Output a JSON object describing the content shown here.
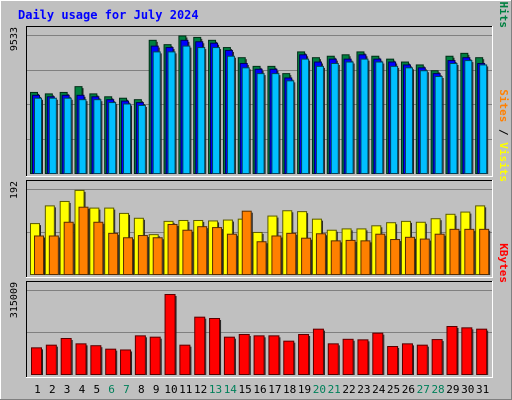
{
  "chart_data": {
    "type": "bar",
    "title": "Daily usage for July 2024",
    "categories": [
      "1",
      "2",
      "3",
      "4",
      "5",
      "6",
      "7",
      "8",
      "9",
      "10",
      "11",
      "12",
      "13",
      "14",
      "15",
      "16",
      "17",
      "18",
      "19",
      "20",
      "21",
      "22",
      "23",
      "24",
      "25",
      "26",
      "27",
      "28",
      "29",
      "30",
      "31"
    ],
    "weekend_days": [
      "6",
      "7",
      "13",
      "14",
      "20",
      "21",
      "27",
      "28"
    ],
    "panels": [
      {
        "name": "hits-files-pages",
        "max_label": "9533",
        "ymax": 9533,
        "legend": [
          {
            "text": "Pages",
            "color": "#00c0ff"
          },
          {
            "text": " / ",
            "color": "#000000"
          },
          {
            "text": "Files",
            "color": "#0000ff"
          },
          {
            "text": " / ",
            "color": "#000000"
          },
          {
            "text": "Hits",
            "color": "#008040"
          }
        ],
        "series": [
          {
            "name": "Hits",
            "color": "#008040",
            "values": [
              5600,
              5500,
              5600,
              6000,
              5500,
              5300,
              5200,
              5100,
              9200,
              8900,
              9500,
              9400,
              9200,
              8700,
              8000,
              7400,
              7400,
              6900,
              8400,
              8000,
              8100,
              8200,
              8400,
              8100,
              7900,
              7700,
              7500,
              7100,
              8100,
              8300,
              8000
            ]
          },
          {
            "name": "Files",
            "color": "#0000ff",
            "values": [
              5400,
              5300,
              5400,
              5400,
              5300,
              5100,
              5000,
              4900,
              8800,
              8700,
              9200,
              9100,
              9000,
              8500,
              7600,
              7200,
              7200,
              6600,
              8200,
              7700,
              7900,
              7900,
              8200,
              7900,
              7700,
              7500,
              7300,
              6900,
              7800,
              8000,
              7600
            ]
          },
          {
            "name": "Pages",
            "color": "#00c0ff",
            "values": [
              5200,
              5200,
              5200,
              5100,
              5100,
              4900,
              4800,
              4700,
              8400,
              8400,
              8800,
              8700,
              8700,
              8100,
              7300,
              6900,
              6900,
              6400,
              7900,
              7400,
              7600,
              7700,
              7900,
              7700,
              7400,
              7300,
              7100,
              6700,
              7600,
              7800,
              7500
            ]
          }
        ]
      },
      {
        "name": "visits-sites",
        "max_label": "192",
        "ymax": 192,
        "legend": [
          {
            "text": "Sites",
            "color": "#ff8000"
          },
          {
            "text": " / ",
            "color": "#000000"
          },
          {
            "text": "Visits",
            "color": "#ffff00"
          }
        ],
        "series": [
          {
            "name": "Visits",
            "color": "#ffff00",
            "values": [
              115,
              155,
              165,
              190,
              150,
              150,
              138,
              127,
              90,
              120,
              122,
              122,
              121,
              123,
              125,
              95,
              132,
              144,
              142,
              125,
              100,
              103,
              103,
              110,
              117,
              120,
              118,
              126,
              136,
              141,
              155
            ]
          },
          {
            "name": "Sites",
            "color": "#ff8000",
            "values": [
              87,
              87,
              118,
              152,
              118,
              93,
              83,
              88,
              83,
              113,
              100,
              108,
              106,
              91,
              143,
              74,
              87,
              93,
              82,
              92,
              76,
              77,
              76,
              91,
              79,
              84,
              80,
              91,
              102,
              102,
              102
            ]
          }
        ]
      },
      {
        "name": "kbytes",
        "max_label": "315009",
        "ymax": 315009,
        "legend": [
          {
            "text": "KBytes",
            "color": "#ff0000"
          }
        ],
        "series": [
          {
            "name": "KBytes",
            "color": "#ff0000",
            "values": [
              100000,
              110000,
              135000,
              115000,
              108000,
              95000,
              92000,
              145000,
              140000,
              300000,
              110000,
              215000,
              210000,
              140000,
              150000,
              145000,
              145000,
              125000,
              150000,
              170000,
              115000,
              132000,
              130000,
              155000,
              105000,
              115000,
              110000,
              131000,
              180000,
              175000,
              170000
            ]
          }
        ]
      }
    ]
  }
}
